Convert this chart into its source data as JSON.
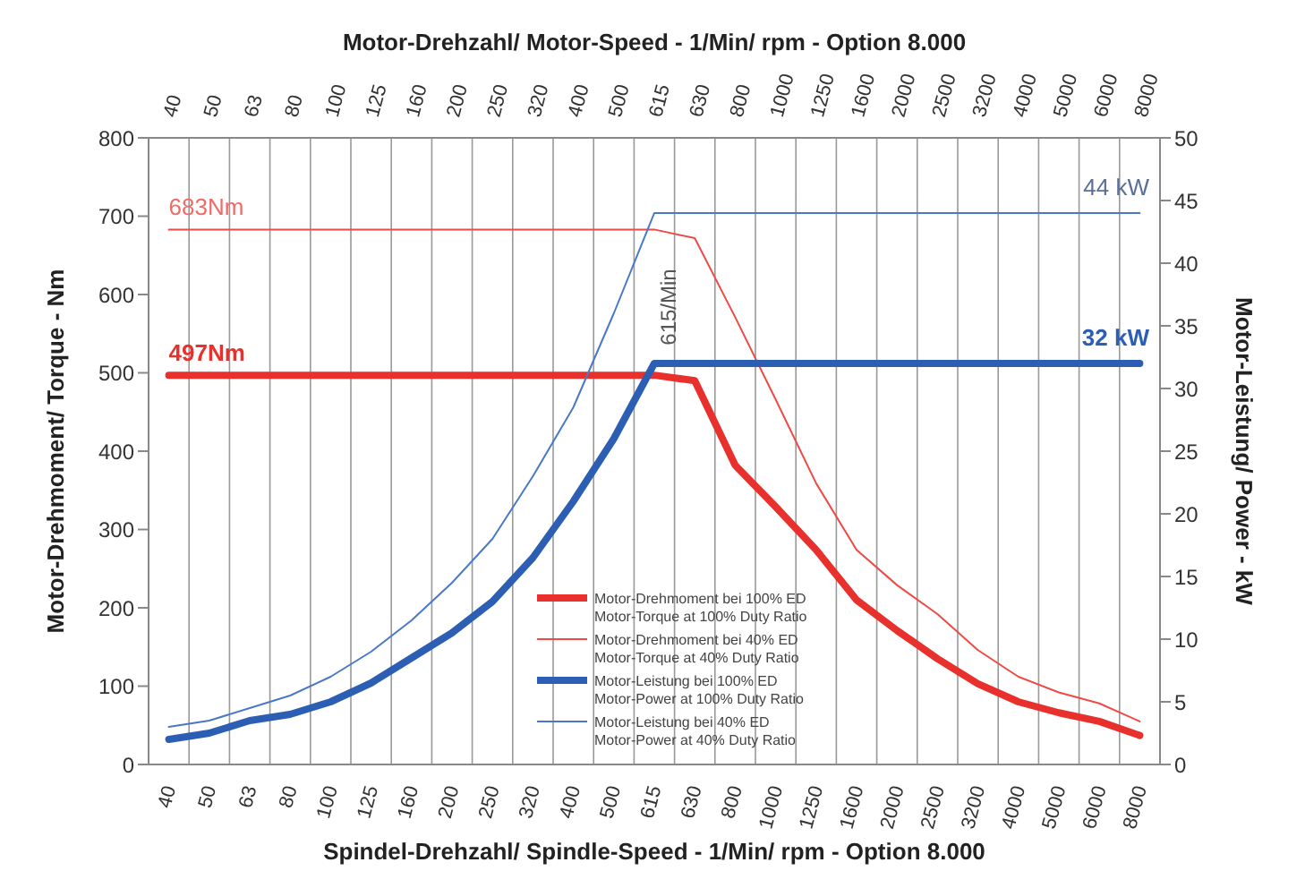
{
  "chart_data": {
    "type": "line",
    "x2label": "Motor-Drehzahl/ Motor-Speed - 1/Min/ rpm - Option 8.000",
    "xlabel": "Spindel-Drehzahl/ Spindle-Speed - 1/Min/ rpm - Option 8.000",
    "ylabel": "Motor-Drehmoment/ Torque - Nm",
    "y2label": "Motor-Leistung/ Power - kW",
    "categories": [
      "40",
      "50",
      "63",
      "80",
      "100",
      "125",
      "160",
      "200",
      "250",
      "320",
      "400",
      "500",
      "615",
      "630",
      "800",
      "1000",
      "1250",
      "1600",
      "2000",
      "2500",
      "3200",
      "4000",
      "5000",
      "6000",
      "8000"
    ],
    "series": [
      {
        "name": "Motor-Drehmoment bei 100% ED\nMotor-Torque at 100% Duty Ratio",
        "color": "#e8302c",
        "values": [
          497,
          497,
          497,
          497,
          497,
          497,
          497,
          497,
          497,
          497,
          497,
          497,
          497,
          490,
          382,
          329,
          274,
          210,
          171,
          135,
          103,
          80,
          66,
          55,
          37
        ]
      },
      {
        "name": "Motor-Drehmoment bei 40% ED\nMotor-Torque at 40% Duty Ratio",
        "color": "#ef4a45",
        "values": [
          683,
          683,
          683,
          683,
          683,
          683,
          683,
          683,
          683,
          683,
          683,
          683,
          683,
          672,
          571,
          466,
          359,
          274,
          229,
          192,
          146,
          112,
          92,
          78,
          55
        ]
      },
      {
        "name": "Motor-Leistung bei 100% ED\nMotor-Power at 100% Duty Ratio",
        "color": "#2c5fb4",
        "axis": "y2",
        "values": [
          2,
          2.5,
          3.5,
          4,
          5,
          6.5,
          8.5,
          10.5,
          13,
          16.5,
          21,
          26,
          32,
          32,
          32,
          32,
          32,
          32,
          32,
          32,
          32,
          32,
          32,
          32,
          32
        ]
      },
      {
        "name": "Motor-Leistung bei 40% ED\nMotor-Power at 40% Duty Ratio",
        "color": "#4a78c8",
        "axis": "y2",
        "values": [
          3,
          3.5,
          4.5,
          5.5,
          7,
          9,
          11.5,
          14.5,
          18,
          23,
          28.5,
          36,
          44,
          44,
          44,
          44,
          44,
          44,
          44,
          44,
          44,
          44,
          44,
          44,
          44
        ]
      }
    ],
    "ylim": [
      0,
      800
    ],
    "yticks": [
      0,
      100,
      200,
      300,
      400,
      500,
      600,
      700,
      800
    ],
    "y2lim": [
      0,
      50
    ],
    "y2ticks": [
      0,
      5,
      10,
      15,
      20,
      25,
      30,
      35,
      40,
      45,
      50
    ],
    "annotations": [
      {
        "text": "683Nm",
        "x": "40",
        "y": 683
      },
      {
        "text": "497Nm",
        "x": "40",
        "y": 497
      },
      "44 kW",
      "32 kW",
      "615/Min"
    ],
    "grid": true,
    "legend": "bottom",
    "marker": "none",
    "line_style": "solid"
  }
}
